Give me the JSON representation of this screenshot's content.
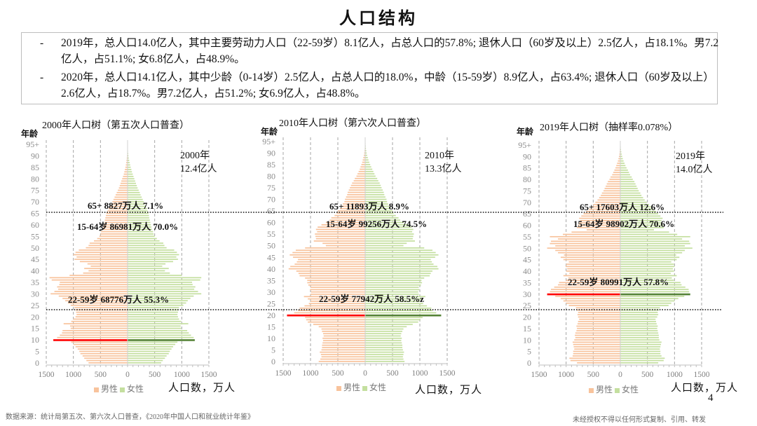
{
  "header": {
    "title": "人口结构"
  },
  "summary": {
    "bullet_symbol": "-",
    "items": [
      "2019年，总人口14.0亿人，其中主要劳动力人口（22-59岁）8.1亿人，占总人口的57.8%; 退休人口（60岁及以上）2.5亿人，占18.1%。男7.2亿人，占51.1%; 女6.8亿人，占48.9%。",
      "2020年，总人口14.1亿人，其中少龄（0-14岁）2.5亿人，占总人口的18.0%，中龄（15-59岁）8.9亿人，占63.4%; 退休人口（60岁及以上）2.6亿人，占18.7%。男7.2亿人，占51.2%; 女6.9亿人，占48.8%。"
    ]
  },
  "colors": {
    "male": "#f8c39c",
    "female": "#c4df9f",
    "male_highlight": "#ff0000",
    "female_highlight": "#548235",
    "grid": "#a6a6a6"
  },
  "chart_data": [
    {
      "type": "bar",
      "orientation": "population-pyramid",
      "title": "2000年人口树（第五次人口普查）",
      "ylabel": "年龄",
      "xlabel": "人口数，万人",
      "total_label": [
        "2000年",
        "12.4亿人"
      ],
      "y_ticks": [
        "0",
        "5",
        "10",
        "15",
        "20",
        "25",
        "30",
        "35",
        "40",
        "45",
        "50",
        "55",
        "60",
        "65",
        "70",
        "75",
        "80",
        "85",
        "90",
        "95+"
      ],
      "x_ticks": [
        "1500",
        "1000",
        "500",
        "0",
        "500",
        "1000",
        "1500"
      ],
      "xlim": [
        -1500,
        1500
      ],
      "ages": "0-95+",
      "legend": [
        "男性",
        "女性"
      ],
      "annotations": [
        "65+  8827万人 7.1%",
        "15-64岁  86981万人 70.0%",
        "22-59岁  68776万人 55.3%"
      ],
      "highlight_age": 10,
      "male": [
        720,
        760,
        800,
        830,
        870,
        890,
        920,
        960,
        1000,
        1040,
        1370,
        1300,
        1250,
        1210,
        1200,
        1050,
        1060,
        1180,
        1040,
        1000,
        960,
        940,
        950,
        960,
        980,
        1050,
        1100,
        1150,
        1200,
        1270,
        1420,
        1350,
        1280,
        1300,
        1260,
        1250,
        1400,
        1440,
        1070,
        820,
        720,
        800,
        680,
        740,
        880,
        980,
        940,
        1000,
        960,
        900,
        770,
        720,
        700,
        620,
        560,
        520,
        500,
        490,
        470,
        450,
        440,
        430,
        420,
        410,
        400,
        390,
        370,
        350,
        330,
        300,
        280,
        260,
        240,
        220,
        200,
        180,
        160,
        145,
        130,
        115,
        100,
        85,
        70,
        60,
        50,
        40,
        32,
        25,
        20,
        15,
        10,
        7,
        5,
        3,
        2,
        2
      ],
      "female": [
        620,
        650,
        690,
        720,
        760,
        780,
        810,
        840,
        880,
        920,
        1240,
        1220,
        1170,
        1130,
        1100,
        990,
        980,
        1120,
        990,
        950,
        930,
        920,
        930,
        940,
        950,
        1030,
        1080,
        1110,
        1160,
        1220,
        1360,
        1300,
        1230,
        1250,
        1200,
        1190,
        1340,
        1360,
        1000,
        780,
        690,
        760,
        640,
        700,
        840,
        930,
        900,
        950,
        910,
        860,
        720,
        680,
        660,
        590,
        540,
        500,
        480,
        470,
        450,
        440,
        430,
        420,
        410,
        400,
        395,
        385,
        370,
        355,
        340,
        315,
        300,
        280,
        260,
        240,
        225,
        205,
        185,
        170,
        155,
        140,
        125,
        110,
        95,
        80,
        70,
        58,
        48,
        38,
        30,
        22,
        16,
        12,
        8,
        6,
        4,
        4
      ]
    },
    {
      "type": "bar",
      "orientation": "population-pyramid",
      "title": "2010年人口树（第六次人口普查）",
      "ylabel": "年龄",
      "xlabel": "人口数，万人",
      "total_label": [
        "2010年",
        "13.3亿人"
      ],
      "y_ticks": [
        "0",
        "5",
        "10",
        "15",
        "20",
        "25",
        "30",
        "35",
        "40",
        "45",
        "50",
        "55",
        "60",
        "65",
        "70",
        "75",
        "80",
        "85",
        "90",
        "95+"
      ],
      "x_ticks": [
        "1500",
        "1000",
        "500",
        "0",
        "500",
        "1000",
        "1500"
      ],
      "xlim": [
        -1500,
        1500
      ],
      "ages": "0-95+",
      "legend": [
        "男性",
        "女性"
      ],
      "annotations": [
        "65+  11893万人 8.9%",
        "15-64岁  99256万人 74.5%",
        "22-59岁  77942万人 58.5%z"
      ],
      "highlight_age": 20,
      "male": [
        850,
        820,
        800,
        810,
        830,
        800,
        790,
        790,
        780,
        770,
        780,
        760,
        770,
        790,
        800,
        850,
        950,
        1050,
        1080,
        1100,
        1430,
        1300,
        1230,
        1200,
        1110,
        1030,
        1000,
        1050,
        1120,
        1000,
        990,
        1010,
        1000,
        1040,
        1060,
        1060,
        1100,
        1200,
        1220,
        1260,
        1400,
        1370,
        1290,
        1250,
        1230,
        1320,
        1380,
        1330,
        1270,
        1100,
        720,
        780,
        940,
        900,
        910,
        920,
        880,
        900,
        870,
        800,
        720,
        650,
        620,
        560,
        520,
        500,
        460,
        430,
        410,
        380,
        370,
        350,
        330,
        320,
        300,
        280,
        260,
        240,
        210,
        190,
        160,
        140,
        120,
        100,
        85,
        70,
        55,
        45,
        35,
        25,
        18,
        12,
        8,
        5,
        4,
        3
      ],
      "female": [
        720,
        700,
        690,
        700,
        710,
        690,
        680,
        680,
        670,
        660,
        670,
        650,
        660,
        680,
        700,
        760,
        870,
        970,
        1010,
        1050,
        1390,
        1300,
        1230,
        1210,
        1130,
        1060,
        1000,
        1040,
        1100,
        980,
        970,
        990,
        980,
        1020,
        1040,
        1030,
        1080,
        1180,
        1200,
        1230,
        1340,
        1320,
        1250,
        1220,
        1200,
        1280,
        1340,
        1290,
        1230,
        1080,
        700,
        760,
        910,
        870,
        880,
        890,
        860,
        880,
        850,
        790,
        710,
        640,
        610,
        560,
        520,
        500,
        470,
        440,
        420,
        400,
        390,
        370,
        350,
        340,
        320,
        300,
        285,
        265,
        240,
        220,
        190,
        170,
        150,
        130,
        110,
        92,
        75,
        60,
        48,
        36,
        27,
        20,
        14,
        10,
        7,
        5
      ]
    },
    {
      "type": "bar",
      "orientation": "population-pyramid",
      "title": "2019年人口树（抽样率0.078%）",
      "ylabel": "年龄",
      "xlabel": "人口数，万人",
      "total_label": [
        "2019年",
        "14.0亿人"
      ],
      "y_ticks": [
        "0",
        "5",
        "10",
        "15",
        "20",
        "25",
        "30",
        "35",
        "40",
        "45",
        "50",
        "55",
        "60",
        "65",
        "70",
        "75",
        "80",
        "85",
        "90",
        "95+"
      ],
      "x_ticks": [
        "1500",
        "1000",
        "500",
        "0",
        "500",
        "1000",
        "1500"
      ],
      "xlim": [
        -1500,
        1500
      ],
      "ages": "0-95+",
      "legend": [
        "男性",
        "女性"
      ],
      "annotations": [
        "65+  17603万人 12.6%",
        "15-64岁  98902万人 70.6%",
        "22-59岁  80991万人 57.8%"
      ],
      "highlight_age": 30,
      "male": [
        800,
        920,
        940,
        880,
        870,
        870,
        850,
        860,
        870,
        880,
        850,
        830,
        840,
        830,
        810,
        800,
        810,
        790,
        780,
        760,
        780,
        790,
        780,
        800,
        820,
        950,
        1000,
        1050,
        1100,
        1200,
        1350,
        1300,
        1280,
        1220,
        1150,
        1130,
        1000,
        960,
        1050,
        940,
        1000,
        980,
        1010,
        1000,
        950,
        1050,
        1100,
        1040,
        1150,
        1200,
        1350,
        1200,
        1300,
        1280,
        1150,
        1300,
        1060,
        900,
        620,
        800,
        780,
        760,
        740,
        760,
        720,
        680,
        630,
        580,
        540,
        500,
        460,
        420,
        390,
        360,
        340,
        310,
        290,
        270,
        250,
        230,
        200,
        180,
        150,
        130,
        110,
        90,
        75,
        60,
        45,
        35,
        25,
        18,
        12,
        8,
        5,
        4
      ],
      "female": [
        700,
        800,
        820,
        760,
        740,
        740,
        730,
        740,
        750,
        760,
        720,
        710,
        710,
        700,
        690,
        680,
        690,
        670,
        660,
        650,
        680,
        700,
        690,
        710,
        730,
        890,
        940,
        1000,
        1070,
        1180,
        1290,
        1270,
        1260,
        1200,
        1130,
        1110,
        990,
        950,
        1040,
        930,
        990,
        970,
        1000,
        990,
        940,
        1040,
        1090,
        1030,
        1140,
        1190,
        1330,
        1190,
        1290,
        1270,
        1140,
        1290,
        1050,
        900,
        620,
        800,
        790,
        770,
        760,
        780,
        740,
        700,
        660,
        610,
        570,
        530,
        490,
        450,
        420,
        390,
        370,
        340,
        320,
        300,
        280,
        260,
        230,
        210,
        180,
        160,
        140,
        115,
        95,
        78,
        60,
        46,
        34,
        25,
        18,
        12,
        8,
        6
      ]
    }
  ],
  "footer": {
    "source": "数据来源：统计局第五次、第六次人口普查，《2020年中国人口和就业统计年鉴》",
    "page_number": "4",
    "copyright": "未经授权不得以任何形式复制、引用、转发"
  }
}
